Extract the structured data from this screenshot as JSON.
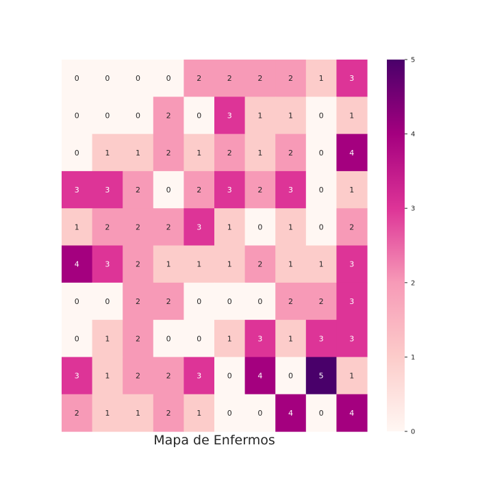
{
  "chart_data": {
    "type": "heatmap",
    "xlabel": "Mapa de Enfermos",
    "matrix": [
      [
        0,
        0,
        0,
        0,
        2,
        2,
        2,
        2,
        1,
        3
      ],
      [
        0,
        0,
        0,
        2,
        0,
        3,
        1,
        1,
        0,
        1
      ],
      [
        0,
        1,
        1,
        2,
        1,
        2,
        1,
        2,
        0,
        4
      ],
      [
        3,
        3,
        2,
        0,
        2,
        3,
        2,
        3,
        0,
        1
      ],
      [
        1,
        2,
        2,
        2,
        3,
        1,
        0,
        1,
        0,
        2
      ],
      [
        4,
        3,
        2,
        1,
        1,
        1,
        2,
        1,
        1,
        3
      ],
      [
        0,
        0,
        2,
        2,
        0,
        0,
        0,
        2,
        2,
        3
      ],
      [
        0,
        1,
        2,
        0,
        0,
        1,
        3,
        1,
        3,
        3
      ],
      [
        3,
        1,
        2,
        2,
        3,
        0,
        4,
        0,
        5,
        1
      ],
      [
        2,
        1,
        1,
        2,
        1,
        0,
        0,
        4,
        0,
        4
      ]
    ],
    "vmin": 0,
    "vmax": 5,
    "colorbar_ticks": [
      0,
      1,
      2,
      3,
      4,
      5
    ],
    "colormap": {
      "name": "RdPu",
      "stops": [
        "#fff7f3",
        "#fcccca",
        "#f79ab7",
        "#dd3497",
        "#a4007f",
        "#49006a"
      ]
    },
    "annotated": true,
    "grid": false
  }
}
